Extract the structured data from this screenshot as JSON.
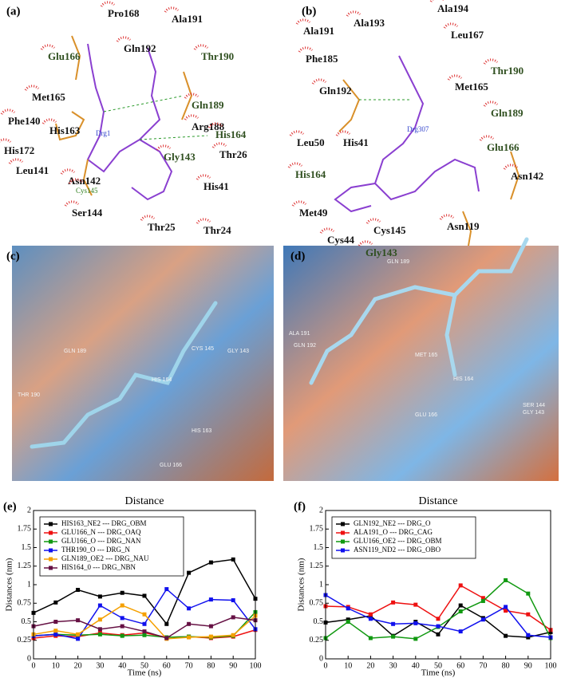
{
  "figure": {
    "a": {
      "label": "(a)",
      "ligand": "Drg1",
      "residues": [
        {
          "name": "Pro168",
          "color": "#111111"
        },
        {
          "name": "Ala191",
          "color": "#111111"
        },
        {
          "name": "Glu166",
          "color": "#2f4f1f"
        },
        {
          "name": "Gln192",
          "color": "#111111"
        },
        {
          "name": "Thr190",
          "color": "#2f4f1f"
        },
        {
          "name": "Met165",
          "color": "#111111"
        },
        {
          "name": "Gln189",
          "color": "#2f4f1f"
        },
        {
          "name": "Phe140",
          "color": "#111111"
        },
        {
          "name": "Arg188",
          "color": "#111111"
        },
        {
          "name": "His163",
          "color": "#111111"
        },
        {
          "name": "His164",
          "color": "#2f4f1f"
        },
        {
          "name": "His172",
          "color": "#111111"
        },
        {
          "name": "Gly143",
          "color": "#2f4f1f"
        },
        {
          "name": "Thr26",
          "color": "#111111"
        },
        {
          "name": "Leu141",
          "color": "#111111"
        },
        {
          "name": "Asn142",
          "color": "#111111"
        },
        {
          "name": "Cys145",
          "color": "#2f7f1f"
        },
        {
          "name": "His41",
          "color": "#111111"
        },
        {
          "name": "Ser144",
          "color": "#111111"
        },
        {
          "name": "Thr25",
          "color": "#111111"
        },
        {
          "name": "Thr24",
          "color": "#111111"
        }
      ]
    },
    "b": {
      "label": "(b)",
      "ligand": "Drg307",
      "residues": [
        {
          "name": "Ala194",
          "color": "#111111"
        },
        {
          "name": "Ala193",
          "color": "#111111"
        },
        {
          "name": "Ala191",
          "color": "#111111"
        },
        {
          "name": "Leu167",
          "color": "#111111"
        },
        {
          "name": "Phe185",
          "color": "#111111"
        },
        {
          "name": "Thr190",
          "color": "#2f4f1f"
        },
        {
          "name": "Met165",
          "color": "#111111"
        },
        {
          "name": "Gln192",
          "color": "#111111"
        },
        {
          "name": "Gln189",
          "color": "#2f4f1f"
        },
        {
          "name": "Leu50",
          "color": "#111111"
        },
        {
          "name": "His41",
          "color": "#111111"
        },
        {
          "name": "Glu166",
          "color": "#2f4f1f"
        },
        {
          "name": "His164",
          "color": "#2f4f1f"
        },
        {
          "name": "Asn142",
          "color": "#111111"
        },
        {
          "name": "Met49",
          "color": "#111111"
        },
        {
          "name": "Asn119",
          "color": "#111111"
        },
        {
          "name": "Cys145",
          "color": "#111111"
        },
        {
          "name": "Cys44",
          "color": "#111111"
        },
        {
          "name": "Gly143",
          "color": "#2f4f1f"
        }
      ]
    },
    "c": {
      "label": "(c)",
      "residues": [
        "GLN 189",
        "THR 190",
        "HIS 164",
        "CYS 145",
        "GLY 143",
        "HIS 163",
        "GLU 166"
      ]
    },
    "d": {
      "label": "(d)",
      "residues": [
        "GLN 189",
        "ALA 191",
        "GLN 192",
        "MET 165",
        "HIS 164",
        "GLU 166",
        "SER 144",
        "GLY 143"
      ]
    }
  },
  "chart_data": [
    {
      "type": "line",
      "panel_label": "(e)",
      "title": "Distance",
      "xlabel": "Time (ns)",
      "ylabel": "Distances (nm)",
      "x": [
        0,
        10,
        20,
        30,
        40,
        50,
        60,
        70,
        80,
        90,
        100
      ],
      "xlim": [
        0,
        100
      ],
      "xticks": [
        0,
        10,
        20,
        30,
        40,
        50,
        60,
        70,
        80,
        90,
        100
      ],
      "ylim": [
        0,
        2
      ],
      "yticks": [
        0,
        0.25,
        0.5,
        0.75,
        1,
        1.25,
        1.5,
        1.75,
        2
      ],
      "legend": "upper left",
      "series": [
        {
          "name": "HIS163_NE2 --- DRG_OBM",
          "color": "#000000",
          "values": [
            0.62,
            0.76,
            0.93,
            0.84,
            0.89,
            0.85,
            0.47,
            1.16,
            1.3,
            1.34,
            0.81
          ]
        },
        {
          "name": "GLU166_N --- DRG_OAQ",
          "color": "#ee1111",
          "values": [
            0.28,
            0.31,
            0.3,
            0.35,
            0.32,
            0.35,
            0.29,
            0.3,
            0.28,
            0.3,
            0.39
          ]
        },
        {
          "name": "GLU166_O --- DRG_NAN",
          "color": "#119911",
          "values": [
            0.31,
            0.33,
            0.32,
            0.33,
            0.31,
            0.32,
            0.29,
            0.3,
            0.29,
            0.31,
            0.63
          ]
        },
        {
          "name": "THR190_O --- DRG_N",
          "color": "#1111ee",
          "values": [
            0.31,
            0.33,
            0.27,
            0.72,
            0.55,
            0.47,
            0.94,
            0.68,
            0.8,
            0.79,
            0.4
          ]
        },
        {
          "name": "GLN189_OE2 --- DRG_NAU",
          "color": "#f5a000",
          "values": [
            0.33,
            0.38,
            0.33,
            0.53,
            0.72,
            0.6,
            0.27,
            0.29,
            0.3,
            0.32,
            0.58
          ]
        },
        {
          "name": "HIS164_0 --- DRG_NBN",
          "color": "#661144",
          "values": [
            0.44,
            0.5,
            0.52,
            0.4,
            0.44,
            0.37,
            0.28,
            0.47,
            0.44,
            0.56,
            0.52
          ]
        }
      ]
    },
    {
      "type": "line",
      "panel_label": "(f)",
      "title": "Distance",
      "xlabel": "Time (ns)",
      "ylabel": "Distances (nm)",
      "x": [
        0,
        10,
        20,
        30,
        40,
        50,
        60,
        70,
        80,
        90,
        100
      ],
      "xlim": [
        0,
        100
      ],
      "xticks": [
        0,
        10,
        20,
        30,
        40,
        50,
        60,
        70,
        80,
        90,
        100
      ],
      "ylim": [
        0,
        2
      ],
      "yticks": [
        0,
        0.25,
        0.5,
        0.75,
        1,
        1.25,
        1.5,
        1.75,
        2
      ],
      "legend": "upper left",
      "series": [
        {
          "name": "GLN192_NE2 --- DRG_O",
          "color": "#000000",
          "values": [
            0.49,
            0.53,
            0.58,
            0.31,
            0.5,
            0.33,
            0.72,
            0.55,
            0.31,
            0.29,
            0.36
          ]
        },
        {
          "name": "ALA191_O --- DRG_CAG",
          "color": "#ee1111",
          "values": [
            0.71,
            0.7,
            0.6,
            0.76,
            0.73,
            0.54,
            0.99,
            0.82,
            0.65,
            0.6,
            0.39
          ]
        },
        {
          "name": "GLU166_OE2 --- DRG_OBM",
          "color": "#119911",
          "values": [
            0.28,
            0.5,
            0.28,
            0.3,
            0.27,
            0.43,
            0.64,
            0.78,
            1.06,
            0.88,
            0.28
          ]
        },
        {
          "name": "ASN119_ND2 --- DRG_OBO",
          "color": "#1111ee",
          "values": [
            0.86,
            0.68,
            0.54,
            0.47,
            0.48,
            0.44,
            0.37,
            0.53,
            0.7,
            0.32,
            0.29
          ]
        }
      ]
    }
  ]
}
